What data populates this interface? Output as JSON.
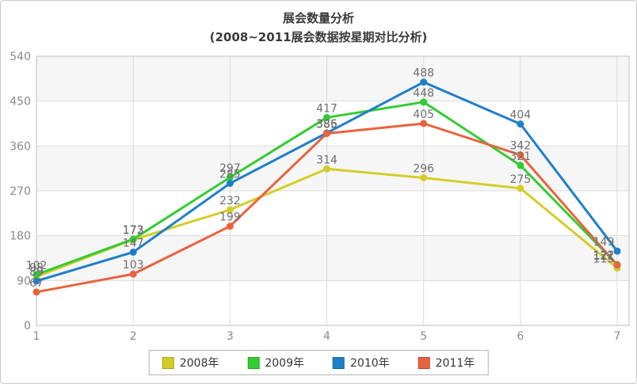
{
  "chart_data": {
    "type": "line",
    "title": "展会数量分析",
    "subtitle": "(2008~2011展会数据按星期对比分析)",
    "categories": [
      "1",
      "2",
      "3",
      "4",
      "5",
      "6",
      "7"
    ],
    "xlabel": "",
    "ylabel": "",
    "ylim": [
      0,
      540
    ],
    "yticks": [
      0,
      90,
      180,
      270,
      360,
      450,
      540
    ],
    "grid": true,
    "band_shading": true,
    "legend_position": "bottom",
    "series": [
      {
        "name": "2008年",
        "color": "#d4cd28",
        "values": [
          98,
          172,
          232,
          314,
          296,
          275,
          115
        ]
      },
      {
        "name": "2009年",
        "color": "#33cc33",
        "values": [
          102,
          173,
          297,
          417,
          448,
          321,
          122
        ]
      },
      {
        "name": "2010年",
        "color": "#1d7fca",
        "values": [
          89,
          147,
          285,
          386,
          488,
          404,
          149
        ]
      },
      {
        "name": "2011年",
        "color": "#e8633f",
        "values": [
          67,
          103,
          199,
          385,
          405,
          342,
          121
        ]
      }
    ]
  },
  "style_colors": {
    "band": "#f6f6f6",
    "gridline": "#dcdcdc",
    "plot_border": "#bdbdbd",
    "tick_text": "#8a8a8a",
    "value_label_text": "#6e6e6e"
  }
}
